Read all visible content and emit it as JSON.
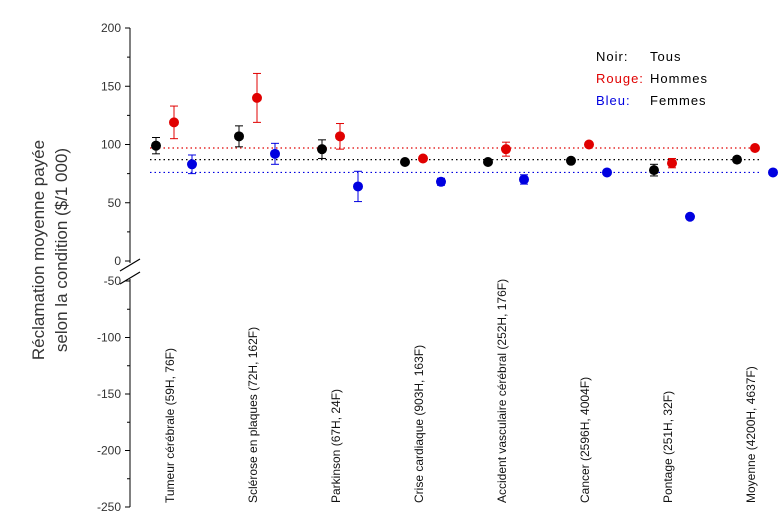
{
  "chart_data": {
    "type": "scatter",
    "ylabel_lines": [
      "Réclamation moyenne payée",
      "selon la condition ($/1 000)"
    ],
    "y_ticks_upper": [
      "200",
      "150",
      "100",
      "50",
      "0"
    ],
    "y_ticks_lower": [
      "-50",
      "-100",
      "-150",
      "-200",
      "-250"
    ],
    "ylim_upper": [
      0,
      200
    ],
    "ylim_lower": [
      -250,
      -50
    ],
    "axis_break": true,
    "categories": [
      "Tumeur cérébrale (59H, 76F)",
      "Sclérose en plaques (72H, 162F)",
      "Parkinson (67H, 24F)",
      "Crise cardiaque (903H, 163F)",
      "Accident vasculaire cérébral (252H, 176F)",
      "Cancer (2596H, 4004F)",
      "Pontage (251H, 32F)",
      "Moyenne (4200H, 4637F)"
    ],
    "legend": [
      {
        "key": "Noir:",
        "label": "Tous",
        "color": "#000000"
      },
      {
        "key": "Rouge:",
        "label": "Hommes",
        "color": "#e00000"
      },
      {
        "key": "Bleu:",
        "label": "Femmes",
        "color": "#0000e0"
      }
    ],
    "legend_position": "top-right",
    "series": [
      {
        "color": "#000000",
        "values": [
          99,
          107,
          96,
          85,
          85,
          86,
          78,
          87
        ],
        "errors": [
          7,
          9,
          8,
          2,
          2,
          1,
          5,
          1
        ]
      },
      {
        "color": "#e00000",
        "values": [
          119,
          140,
          107,
          88,
          96,
          100,
          84,
          97
        ],
        "errors": [
          14,
          21,
          11,
          2,
          6,
          2,
          4,
          1
        ]
      },
      {
        "color": "#0000e0",
        "values": [
          83,
          92,
          64,
          68,
          70,
          76,
          38,
          76
        ],
        "errors": [
          8,
          9,
          13,
          3,
          4,
          1,
          2,
          1
        ]
      }
    ],
    "reference_lines": [
      {
        "color": "#e00000",
        "value": 97
      },
      {
        "color": "#000000",
        "value": 87
      },
      {
        "color": "#0000e0",
        "value": 76
      }
    ]
  }
}
